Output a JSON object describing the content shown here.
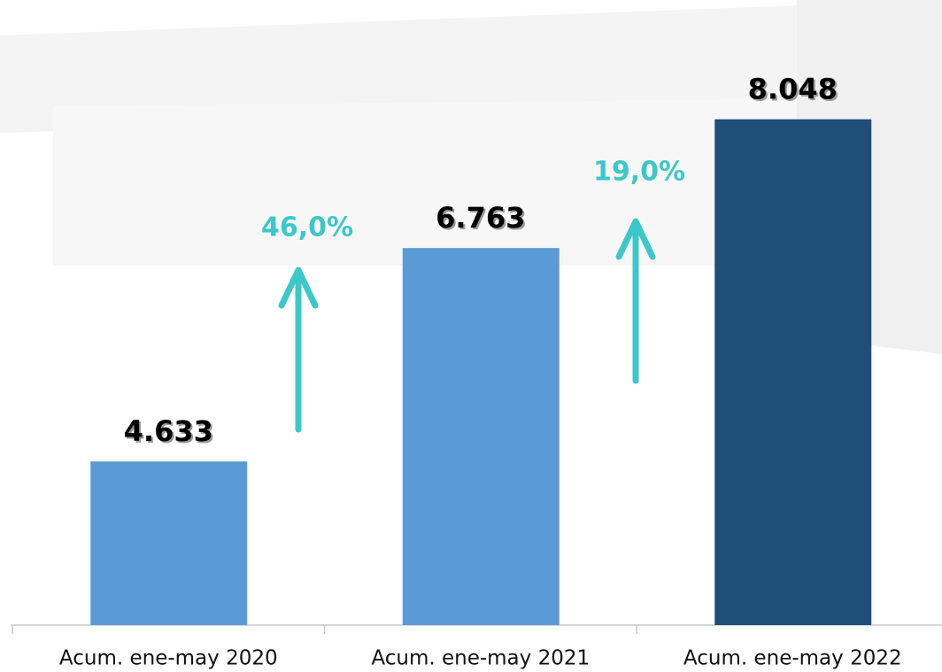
{
  "chart_data": {
    "type": "bar",
    "categories": [
      "Acum. ene-may 2020",
      "Acum. ene-may 2021",
      "Acum. ene-may 2022"
    ],
    "values": [
      4633,
      6763,
      8048
    ],
    "value_labels": [
      "4.633",
      "6.763",
      "8.048"
    ],
    "colors": [
      "#5b9bd5",
      "#5b9bd5",
      "#1f4e79"
    ],
    "ylim": [
      3000,
      9000
    ],
    "annotations": [
      {
        "text": "46,0%",
        "color": "#3cc8c8"
      },
      {
        "text": "19,0%",
        "color": "#3cc8c8"
      }
    ]
  }
}
